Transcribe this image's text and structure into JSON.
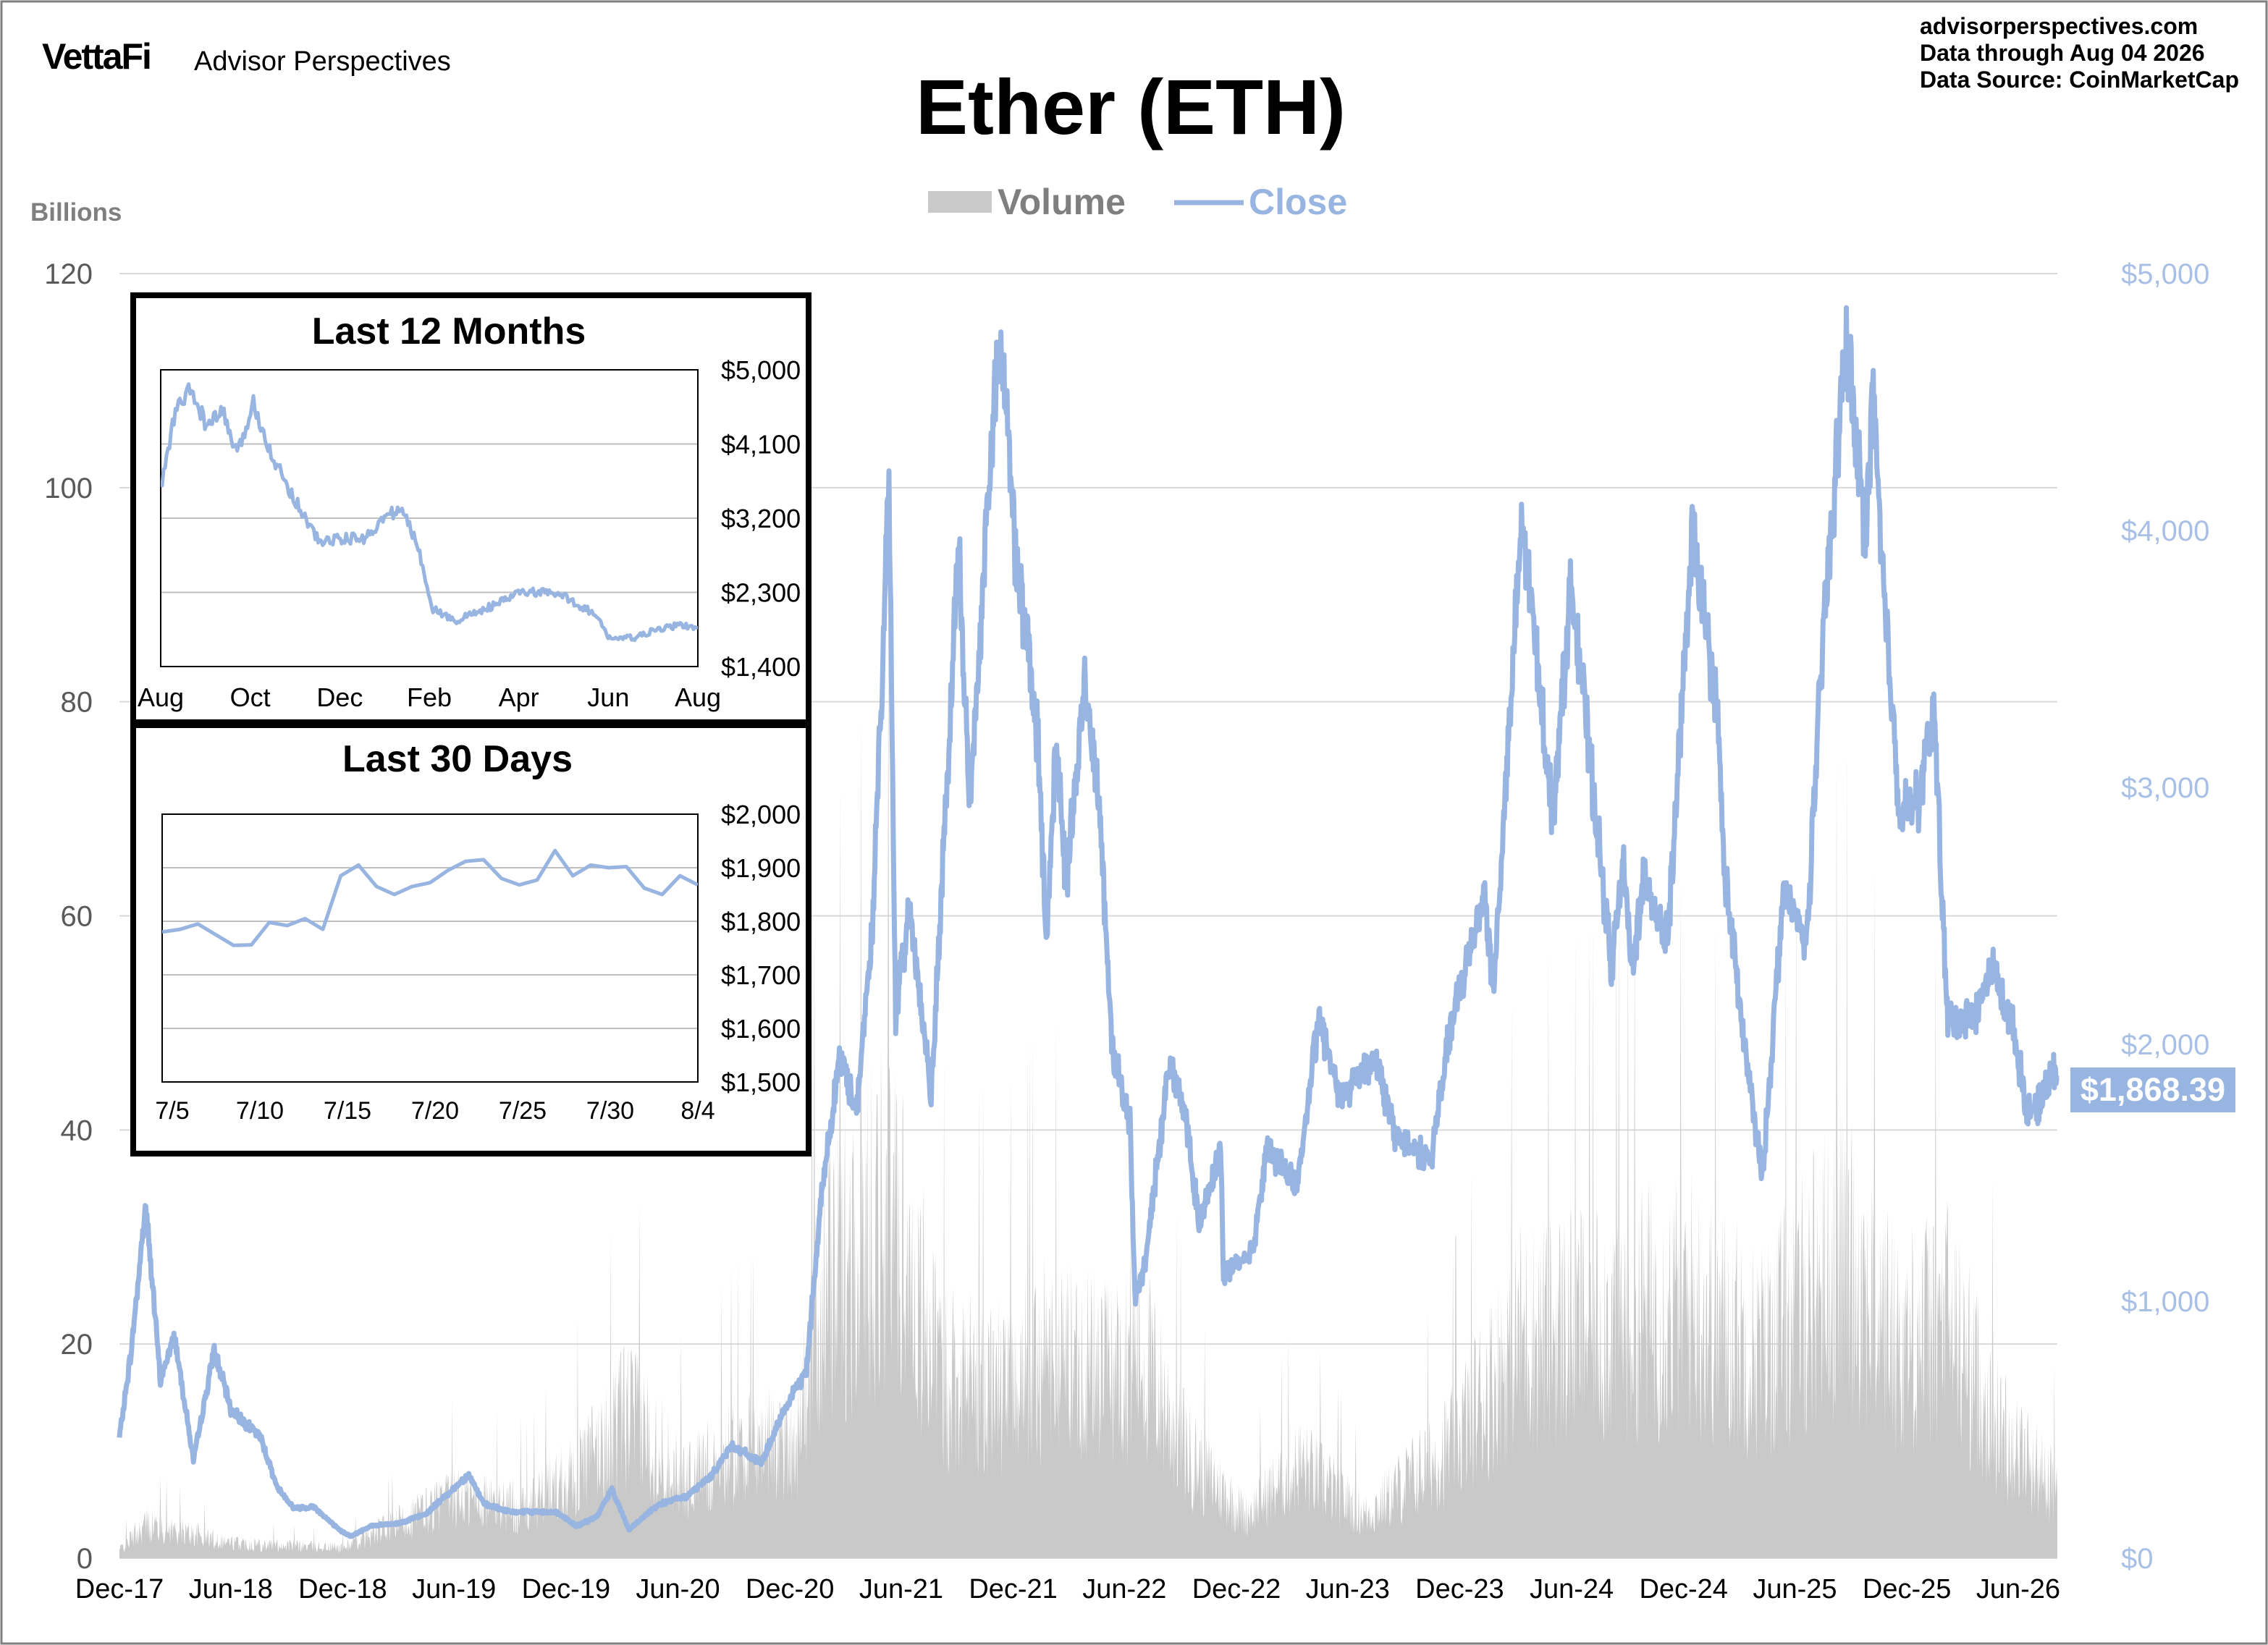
{
  "header": {
    "brand_logo": "VettaFi",
    "brand_name": "Advisor Perspectives",
    "site": "advisorperspectives.com",
    "data_through": "Data through  Aug 04 2026",
    "data_source": "Data Source:  CoinMarketCap"
  },
  "colors": {
    "volume": "#c9c9c9",
    "close": "#98b4e0",
    "grid": "#d9d9d9",
    "axis_text": "#595959",
    "right_axis_text": "#a9c0e6",
    "badge_bg": "#98b4e0",
    "inset_border": "#000000"
  },
  "chart_data": [
    {
      "id": "main",
      "type": "line",
      "title": "Ether (ETH)",
      "legend": {
        "placement": "top-center",
        "entries": [
          "Volume",
          "Close"
        ]
      },
      "left_axis_label": "Billions",
      "left_axis": {
        "min": 0,
        "max": 120,
        "ticks": [
          "0",
          "20",
          "40",
          "60",
          "80",
          "100",
          "120"
        ]
      },
      "right_axis": {
        "min": 0,
        "max": 5000,
        "ticks": [
          "$0",
          "$1,000",
          "$2,000",
          "$3,000",
          "$4,000",
          "$5,000"
        ]
      },
      "x_axis": {
        "start": "2017-12-01",
        "end": "2026-08-04",
        "ticks": [
          "Dec-17",
          "Jun-18",
          "Dec-18",
          "Jun-19",
          "Dec-19",
          "Jun-20",
          "Dec-20",
          "Jun-21",
          "Dec-21",
          "Jun-22",
          "Dec-22",
          "Jun-23",
          "Dec-23",
          "Jun-24",
          "Dec-24",
          "Jun-25",
          "Dec-25",
          "Jun-26"
        ]
      },
      "grid": "horizontal",
      "last_close_label": "$1,868.39",
      "series": [
        {
          "name": "Close",
          "axis": "right",
          "points": [
            [
              "2017-12-01",
              470
            ],
            [
              "2017-12-20",
              800
            ],
            [
              "2018-01-13",
              1380
            ],
            [
              "2018-02-06",
              690
            ],
            [
              "2018-03-01",
              870
            ],
            [
              "2018-04-01",
              380
            ],
            [
              "2018-05-05",
              810
            ],
            [
              "2018-06-01",
              580
            ],
            [
              "2018-07-20",
              470
            ],
            [
              "2018-08-15",
              280
            ],
            [
              "2018-09-12",
              195
            ],
            [
              "2018-10-15",
              200
            ],
            [
              "2018-11-25",
              110
            ],
            [
              "2018-12-15",
              85
            ],
            [
              "2019-01-15",
              125
            ],
            [
              "2019-03-01",
              135
            ],
            [
              "2019-04-15",
              170
            ],
            [
              "2019-06-25",
              325
            ],
            [
              "2019-07-20",
              210
            ],
            [
              "2019-09-01",
              180
            ],
            [
              "2019-11-15",
              180
            ],
            [
              "2019-12-18",
              125
            ],
            [
              "2020-01-20",
              160
            ],
            [
              "2020-02-14",
              270
            ],
            [
              "2020-03-13",
              110
            ],
            [
              "2020-04-30",
              210
            ],
            [
              "2020-06-15",
              240
            ],
            [
              "2020-07-25",
              320
            ],
            [
              "2020-08-28",
              440
            ],
            [
              "2020-10-15",
              370
            ],
            [
              "2020-11-25",
              590
            ],
            [
              "2020-12-28",
              730
            ],
            [
              "2021-01-20",
              1380
            ],
            [
              "2021-02-20",
              1950
            ],
            [
              "2021-03-20",
              1750
            ],
            [
              "2021-04-15",
              2450
            ],
            [
              "2021-05-12",
              4170
            ],
            [
              "2021-05-23",
              2100
            ],
            [
              "2021-06-15",
              2550
            ],
            [
              "2021-07-20",
              1790
            ],
            [
              "2021-08-20",
              3250
            ],
            [
              "2021-09-03",
              3950
            ],
            [
              "2021-09-21",
              2900
            ],
            [
              "2021-10-20",
              4100
            ],
            [
              "2021-11-10",
              4810
            ],
            [
              "2021-12-04",
              3950
            ],
            [
              "2022-01-10",
              3200
            ],
            [
              "2022-01-24",
              2400
            ],
            [
              "2022-02-10",
              3200
            ],
            [
              "2022-02-25",
              2600
            ],
            [
              "2022-03-28",
              3400
            ],
            [
              "2022-04-20",
              3000
            ],
            [
              "2022-05-11",
              2000
            ],
            [
              "2022-06-10",
              1700
            ],
            [
              "2022-06-18",
              1000
            ],
            [
              "2022-07-05",
              1150
            ],
            [
              "2022-08-14",
              1950
            ],
            [
              "2022-09-10",
              1700
            ],
            [
              "2022-10-01",
              1300
            ],
            [
              "2022-11-05",
              1600
            ],
            [
              "2022-11-10",
              1100
            ],
            [
              "2022-12-28",
              1200
            ],
            [
              "2023-01-20",
              1600
            ],
            [
              "2023-03-10",
              1450
            ],
            [
              "2023-04-15",
              2100
            ],
            [
              "2023-05-20",
              1800
            ],
            [
              "2023-07-15",
              1950
            ],
            [
              "2023-08-17",
              1650
            ],
            [
              "2023-10-15",
              1550
            ],
            [
              "2023-11-15",
              2050
            ],
            [
              "2024-01-10",
              2600
            ],
            [
              "2024-01-25",
              2200
            ],
            [
              "2024-03-12",
              4050
            ],
            [
              "2024-05-01",
              2900
            ],
            [
              "2024-06-01",
              3800
            ],
            [
              "2024-08-05",
              2300
            ],
            [
              "2024-08-25",
              2700
            ],
            [
              "2024-09-07",
              2300
            ],
            [
              "2024-09-28",
              2650
            ],
            [
              "2024-11-05",
              2400
            ],
            [
              "2024-12-16",
              4000
            ],
            [
              "2025-01-25",
              3300
            ],
            [
              "2025-02-05",
              2700
            ],
            [
              "2025-03-10",
              2000
            ],
            [
              "2025-04-09",
              1480
            ],
            [
              "2025-05-13",
              2600
            ],
            [
              "2025-06-20",
              2400
            ],
            [
              "2025-07-20",
              3700
            ],
            [
              "2025-08-24",
              4750
            ],
            [
              "2025-09-25",
              3950
            ],
            [
              "2025-10-06",
              4600
            ],
            [
              "2025-10-20",
              3900
            ],
            [
              "2025-11-20",
              2900
            ],
            [
              "2025-12-20",
              2950
            ],
            [
              "2026-01-15",
              3300
            ],
            [
              "2026-02-05",
              2100
            ],
            [
              "2026-03-20",
              2100
            ],
            [
              "2026-04-20",
              2300
            ],
            [
              "2026-05-25",
              2050
            ],
            [
              "2026-06-15",
              1750
            ],
            [
              "2026-07-01",
              1740
            ],
            [
              "2026-07-25",
              1900
            ],
            [
              "2026-08-04",
              1868
            ]
          ]
        },
        {
          "name": "Volume",
          "axis": "left",
          "points": [
            [
              "2017-12-01",
              1.0
            ],
            [
              "2018-01-15",
              4.0
            ],
            [
              "2018-06-01",
              1.8
            ],
            [
              "2018-12-01",
              1.2
            ],
            [
              "2019-06-01",
              7.0
            ],
            [
              "2019-10-01",
              6.0
            ],
            [
              "2020-01-15",
              12.0
            ],
            [
              "2020-03-13",
              17.0
            ],
            [
              "2020-06-15",
              9.0
            ],
            [
              "2020-09-01",
              13.0
            ],
            [
              "2020-12-15",
              14.0
            ],
            [
              "2021-01-15",
              30.0
            ],
            [
              "2021-05-15",
              42.0
            ],
            [
              "2021-08-01",
              22.0
            ],
            [
              "2021-11-15",
              20.0
            ],
            [
              "2022-01-20",
              24.0
            ],
            [
              "2022-05-15",
              22.0
            ],
            [
              "2022-06-20",
              25.0
            ],
            [
              "2022-09-15",
              12.0
            ],
            [
              "2022-12-15",
              5.0
            ],
            [
              "2023-03-15",
              11.0
            ],
            [
              "2023-07-01",
              5.0
            ],
            [
              "2023-11-15",
              13.0
            ],
            [
              "2024-03-10",
              26.0
            ],
            [
              "2024-08-05",
              28.0
            ],
            [
              "2024-12-10",
              30.0
            ],
            [
              "2025-04-07",
              24.0
            ],
            [
              "2025-08-20",
              36.0
            ],
            [
              "2025-11-20",
              25.0
            ],
            [
              "2026-02-05",
              28.0
            ],
            [
              "2026-05-01",
              15.0
            ],
            [
              "2026-08-04",
              8.0
            ]
          ]
        }
      ]
    },
    {
      "id": "inset-12m",
      "type": "line",
      "title": "Last 12 Months",
      "x_ticks": [
        "Aug",
        "Oct",
        "Dec",
        "Feb",
        "Apr",
        "Jun",
        "Aug"
      ],
      "y_ticks": [
        "$1,400",
        "$2,300",
        "$3,200",
        "$4,100",
        "$5,000"
      ],
      "y_range": [
        1400,
        5000
      ],
      "grid": "horizontal",
      "series": [
        {
          "name": "Close",
          "points": [
            [
              "2025-08-04",
              3550
            ],
            [
              "2025-08-14",
              4500
            ],
            [
              "2025-08-24",
              4750
            ],
            [
              "2025-09-05",
              4300
            ],
            [
              "2025-09-15",
              4500
            ],
            [
              "2025-09-25",
              3950
            ],
            [
              "2025-10-06",
              4600
            ],
            [
              "2025-10-20",
              3900
            ],
            [
              "2025-11-04",
              3400
            ],
            [
              "2025-11-20",
              2900
            ],
            [
              "2025-12-01",
              2950
            ],
            [
              "2025-12-20",
              2950
            ],
            [
              "2026-01-06",
              3250
            ],
            [
              "2026-01-15",
              3300
            ],
            [
              "2026-01-25",
              2900
            ],
            [
              "2026-02-05",
              2100
            ],
            [
              "2026-02-20",
              1950
            ],
            [
              "2026-03-05",
              2050
            ],
            [
              "2026-03-20",
              2150
            ],
            [
              "2026-04-05",
              2300
            ],
            [
              "2026-04-20",
              2300
            ],
            [
              "2026-05-05",
              2250
            ],
            [
              "2026-05-25",
              2050
            ],
            [
              "2026-06-05",
              1750
            ],
            [
              "2026-06-15",
              1740
            ],
            [
              "2026-06-25",
              1760
            ],
            [
              "2026-07-05",
              1830
            ],
            [
              "2026-07-15",
              1880
            ],
            [
              "2026-07-25",
              1900
            ],
            [
              "2026-08-04",
              1868
            ]
          ]
        }
      ]
    },
    {
      "id": "inset-30d",
      "type": "line",
      "title": "Last 30 Days",
      "x_ticks": [
        "7/5",
        "7/10",
        "7/15",
        "7/20",
        "7/25",
        "7/30",
        "8/4"
      ],
      "y_ticks": [
        "$1,500",
        "$1,600",
        "$1,700",
        "$1,800",
        "$1,900",
        "$2,000"
      ],
      "y_range": [
        1500,
        2000
      ],
      "grid": "horizontal",
      "series": [
        {
          "name": "Close",
          "points": [
            [
              "2026-07-05",
              1780
            ],
            [
              "2026-07-06",
              1785
            ],
            [
              "2026-07-07",
              1795
            ],
            [
              "2026-07-08",
              1775
            ],
            [
              "2026-07-09",
              1755
            ],
            [
              "2026-07-10",
              1756
            ],
            [
              "2026-07-11",
              1798
            ],
            [
              "2026-07-12",
              1792
            ],
            [
              "2026-07-13",
              1805
            ],
            [
              "2026-07-14",
              1785
            ],
            [
              "2026-07-15",
              1885
            ],
            [
              "2026-07-16",
              1905
            ],
            [
              "2026-07-17",
              1865
            ],
            [
              "2026-07-18",
              1850
            ],
            [
              "2026-07-19",
              1865
            ],
            [
              "2026-07-20",
              1872
            ],
            [
              "2026-07-21",
              1895
            ],
            [
              "2026-07-22",
              1912
            ],
            [
              "2026-07-23",
              1915
            ],
            [
              "2026-07-24",
              1880
            ],
            [
              "2026-07-25",
              1868
            ],
            [
              "2026-07-26",
              1877
            ],
            [
              "2026-07-27",
              1932
            ],
            [
              "2026-07-28",
              1885
            ],
            [
              "2026-07-29",
              1905
            ],
            [
              "2026-07-30",
              1900
            ],
            [
              "2026-07-31",
              1902
            ],
            [
              "2026-08-01",
              1862
            ],
            [
              "2026-08-02",
              1850
            ],
            [
              "2026-08-03",
              1885
            ],
            [
              "2026-08-04",
              1868
            ]
          ]
        }
      ]
    }
  ]
}
